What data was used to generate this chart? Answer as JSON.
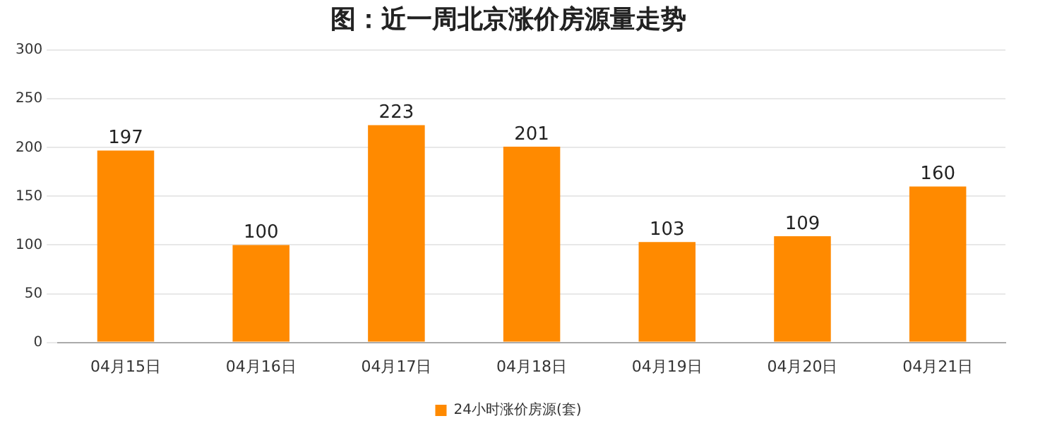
{
  "chart_data": {
    "type": "bar",
    "title": "图：近一周北京涨价房源量走势",
    "categories": [
      "04月15日",
      "04月16日",
      "04月17日",
      "04月18日",
      "04月19日",
      "04月20日",
      "04月21日"
    ],
    "series": [
      {
        "name": "24小时涨价房源(套)",
        "color": "#ff8a00",
        "values": [
          197,
          100,
          223,
          201,
          103,
          109,
          160
        ]
      }
    ],
    "ylim": [
      0,
      300
    ],
    "yticks": [
      0,
      50,
      100,
      150,
      200,
      250,
      300
    ],
    "grid": "y",
    "legend": "bottom",
    "data_labels": true
  }
}
